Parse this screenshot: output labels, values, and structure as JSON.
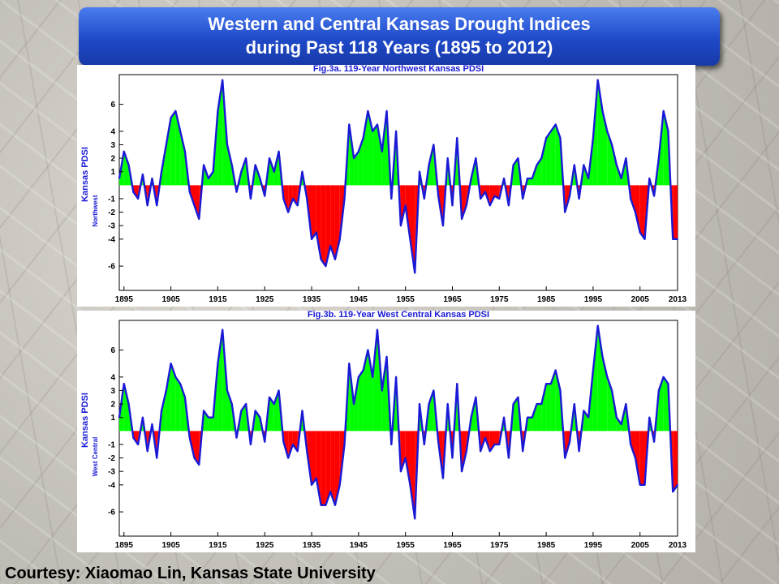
{
  "banner": {
    "line1": "Western and Central Kansas Drought Indices",
    "line2": "during Past 118 Years (1895 to 2012)"
  },
  "credit": "Courtesy: Xiaomao Lin, Kansas State University",
  "colors": {
    "positive": "#00ff00",
    "negative": "#ff0000",
    "line": "#1a1ad6",
    "title": "#1a1ad6"
  },
  "chart_data": [
    {
      "type": "area",
      "title": "Fig.3a.  119-Year Northwest Kansas PDSI",
      "ylabel": "Kansas PDSI",
      "ylabel2": "Northwest",
      "xlim": [
        1894,
        2013
      ],
      "ylim": [
        -7.8,
        8.2
      ],
      "xticks": [
        "1895",
        "1905",
        "1915",
        "1925",
        "1935",
        "1945",
        "1955",
        "1965",
        "1975",
        "1985",
        "1995",
        "2005",
        "2013"
      ],
      "xtick_values": [
        1895,
        1905,
        1915,
        1925,
        1935,
        1945,
        1955,
        1965,
        1975,
        1985,
        1995,
        2005,
        2013
      ],
      "yticks": [
        "6",
        "4",
        "3",
        "2",
        "1",
        "-1",
        "-2",
        "-3",
        "-4",
        "-6"
      ],
      "ytick_values": [
        6,
        4,
        3,
        2,
        1,
        -1,
        -2,
        -3,
        -4,
        -6
      ],
      "x": [
        1894,
        1895,
        1896,
        1897,
        1898,
        1899,
        1900,
        1901,
        1902,
        1903,
        1904,
        1905,
        1906,
        1907,
        1908,
        1909,
        1910,
        1911,
        1912,
        1913,
        1914,
        1915,
        1916,
        1917,
        1918,
        1919,
        1920,
        1921,
        1922,
        1923,
        1924,
        1925,
        1926,
        1927,
        1928,
        1929,
        1930,
        1931,
        1932,
        1933,
        1934,
        1935,
        1936,
        1937,
        1938,
        1939,
        1940,
        1941,
        1942,
        1943,
        1944,
        1945,
        1946,
        1947,
        1948,
        1949,
        1950,
        1951,
        1952,
        1953,
        1954,
        1955,
        1956,
        1957,
        1958,
        1959,
        1960,
        1961,
        1962,
        1963,
        1964,
        1965,
        1966,
        1967,
        1968,
        1969,
        1970,
        1971,
        1972,
        1973,
        1974,
        1975,
        1976,
        1977,
        1978,
        1979,
        1980,
        1981,
        1982,
        1983,
        1984,
        1985,
        1986,
        1987,
        1988,
        1989,
        1990,
        1991,
        1992,
        1993,
        1994,
        1995,
        1996,
        1997,
        1998,
        1999,
        2000,
        2001,
        2002,
        2003,
        2004,
        2005,
        2006,
        2007,
        2008,
        2009,
        2010,
        2011,
        2012,
        2013
      ],
      "values": [
        0.5,
        2.5,
        1.5,
        -0.5,
        -1.0,
        0.8,
        -1.5,
        0.5,
        -1.5,
        1.0,
        3.0,
        5.0,
        5.5,
        4.0,
        2.5,
        -0.5,
        -1.5,
        -2.5,
        1.5,
        0.5,
        1.0,
        5.5,
        7.8,
        3.0,
        1.5,
        -0.5,
        1.0,
        2.0,
        -1.0,
        1.5,
        0.5,
        -0.8,
        2.0,
        1.0,
        2.5,
        -1.0,
        -2.0,
        -1.0,
        -1.5,
        1.0,
        -1.0,
        -4.0,
        -3.5,
        -5.5,
        -6.0,
        -4.5,
        -5.5,
        -4.0,
        -1.0,
        4.5,
        2.0,
        2.5,
        3.5,
        5.5,
        4.0,
        4.5,
        2.5,
        5.5,
        -1.0,
        4.0,
        -3.0,
        -1.5,
        -4.0,
        -6.5,
        1.0,
        -1.0,
        1.5,
        3.0,
        -0.8,
        -3.0,
        2.0,
        -1.5,
        3.5,
        -2.5,
        -1.5,
        0.5,
        2.0,
        -1.0,
        -0.5,
        -1.5,
        -0.8,
        -1.0,
        0.5,
        -1.5,
        1.5,
        2.0,
        -1.0,
        0.5,
        0.5,
        1.5,
        2.0,
        3.5,
        4.0,
        4.5,
        3.5,
        -2.0,
        -0.8,
        1.5,
        -1.0,
        1.5,
        0.5,
        3.5,
        7.8,
        5.5,
        4.0,
        3.0,
        1.5,
        0.5,
        2.0,
        -1.0,
        -2.0,
        -3.5,
        -4.0,
        0.5,
        -0.8,
        2.0,
        5.5,
        4.0,
        -4.0,
        -4.0
      ]
    },
    {
      "type": "area",
      "title": "Fig.3b.  119-Year West Central Kansas PDSI",
      "ylabel": "Kansas PDSI",
      "ylabel2": "West Central",
      "xlim": [
        1894,
        2013
      ],
      "ylim": [
        -7.8,
        8.2
      ],
      "xticks": [
        "1895",
        "1905",
        "1915",
        "1925",
        "1935",
        "1945",
        "1955",
        "1965",
        "1975",
        "1985",
        "1995",
        "2005",
        "2013"
      ],
      "xtick_values": [
        1895,
        1905,
        1915,
        1925,
        1935,
        1945,
        1955,
        1965,
        1975,
        1985,
        1995,
        2005,
        2013
      ],
      "yticks": [
        "6",
        "4",
        "3",
        "2",
        "1",
        "-1",
        "-2",
        "-3",
        "-4",
        "-6"
      ],
      "ytick_values": [
        6,
        4,
        3,
        2,
        1,
        -1,
        -2,
        -3,
        -4,
        -6
      ],
      "x": [
        1894,
        1895,
        1896,
        1897,
        1898,
        1899,
        1900,
        1901,
        1902,
        1903,
        1904,
        1905,
        1906,
        1907,
        1908,
        1909,
        1910,
        1911,
        1912,
        1913,
        1914,
        1915,
        1916,
        1917,
        1918,
        1919,
        1920,
        1921,
        1922,
        1923,
        1924,
        1925,
        1926,
        1927,
        1928,
        1929,
        1930,
        1931,
        1932,
        1933,
        1934,
        1935,
        1936,
        1937,
        1938,
        1939,
        1940,
        1941,
        1942,
        1943,
        1944,
        1945,
        1946,
        1947,
        1948,
        1949,
        1950,
        1951,
        1952,
        1953,
        1954,
        1955,
        1956,
        1957,
        1958,
        1959,
        1960,
        1961,
        1962,
        1963,
        1964,
        1965,
        1966,
        1967,
        1968,
        1969,
        1970,
        1971,
        1972,
        1973,
        1974,
        1975,
        1976,
        1977,
        1978,
        1979,
        1980,
        1981,
        1982,
        1983,
        1984,
        1985,
        1986,
        1987,
        1988,
        1989,
        1990,
        1991,
        1992,
        1993,
        1994,
        1995,
        1996,
        1997,
        1998,
        1999,
        2000,
        2001,
        2002,
        2003,
        2004,
        2005,
        2006,
        2007,
        2008,
        2009,
        2010,
        2011,
        2012,
        2013
      ],
      "values": [
        1.0,
        3.5,
        2.0,
        -0.5,
        -1.0,
        1.0,
        -1.5,
        0.5,
        -2.0,
        1.5,
        3.0,
        5.0,
        4.0,
        3.5,
        2.5,
        -0.5,
        -2.0,
        -2.5,
        1.5,
        1.0,
        1.0,
        5.0,
        7.5,
        3.0,
        2.0,
        -0.5,
        1.5,
        2.0,
        -1.0,
        1.5,
        1.0,
        -0.8,
        2.5,
        2.0,
        3.0,
        -0.8,
        -2.0,
        -1.0,
        -1.5,
        1.5,
        -1.5,
        -4.0,
        -3.5,
        -5.5,
        -5.5,
        -4.5,
        -5.5,
        -4.0,
        -1.0,
        5.0,
        2.0,
        4.0,
        4.5,
        6.0,
        4.0,
        7.5,
        3.0,
        5.5,
        -1.0,
        4.0,
        -3.0,
        -2.0,
        -4.0,
        -6.5,
        2.0,
        -1.0,
        2.0,
        3.0,
        -0.8,
        -3.5,
        2.0,
        -2.0,
        3.5,
        -3.0,
        -1.5,
        1.0,
        2.5,
        -1.5,
        -0.5,
        -1.5,
        -1.0,
        -1.0,
        1.0,
        -2.0,
        2.0,
        2.5,
        -1.5,
        1.0,
        1.0,
        2.0,
        2.0,
        3.5,
        3.5,
        4.5,
        3.0,
        -2.0,
        -0.8,
        2.0,
        -1.5,
        1.5,
        1.0,
        4.5,
        7.8,
        5.5,
        4.0,
        3.0,
        1.0,
        0.5,
        2.0,
        -1.0,
        -2.0,
        -4.0,
        -4.0,
        1.0,
        -0.8,
        3.0,
        4.0,
        3.5,
        -4.5,
        -4.0
      ]
    }
  ]
}
